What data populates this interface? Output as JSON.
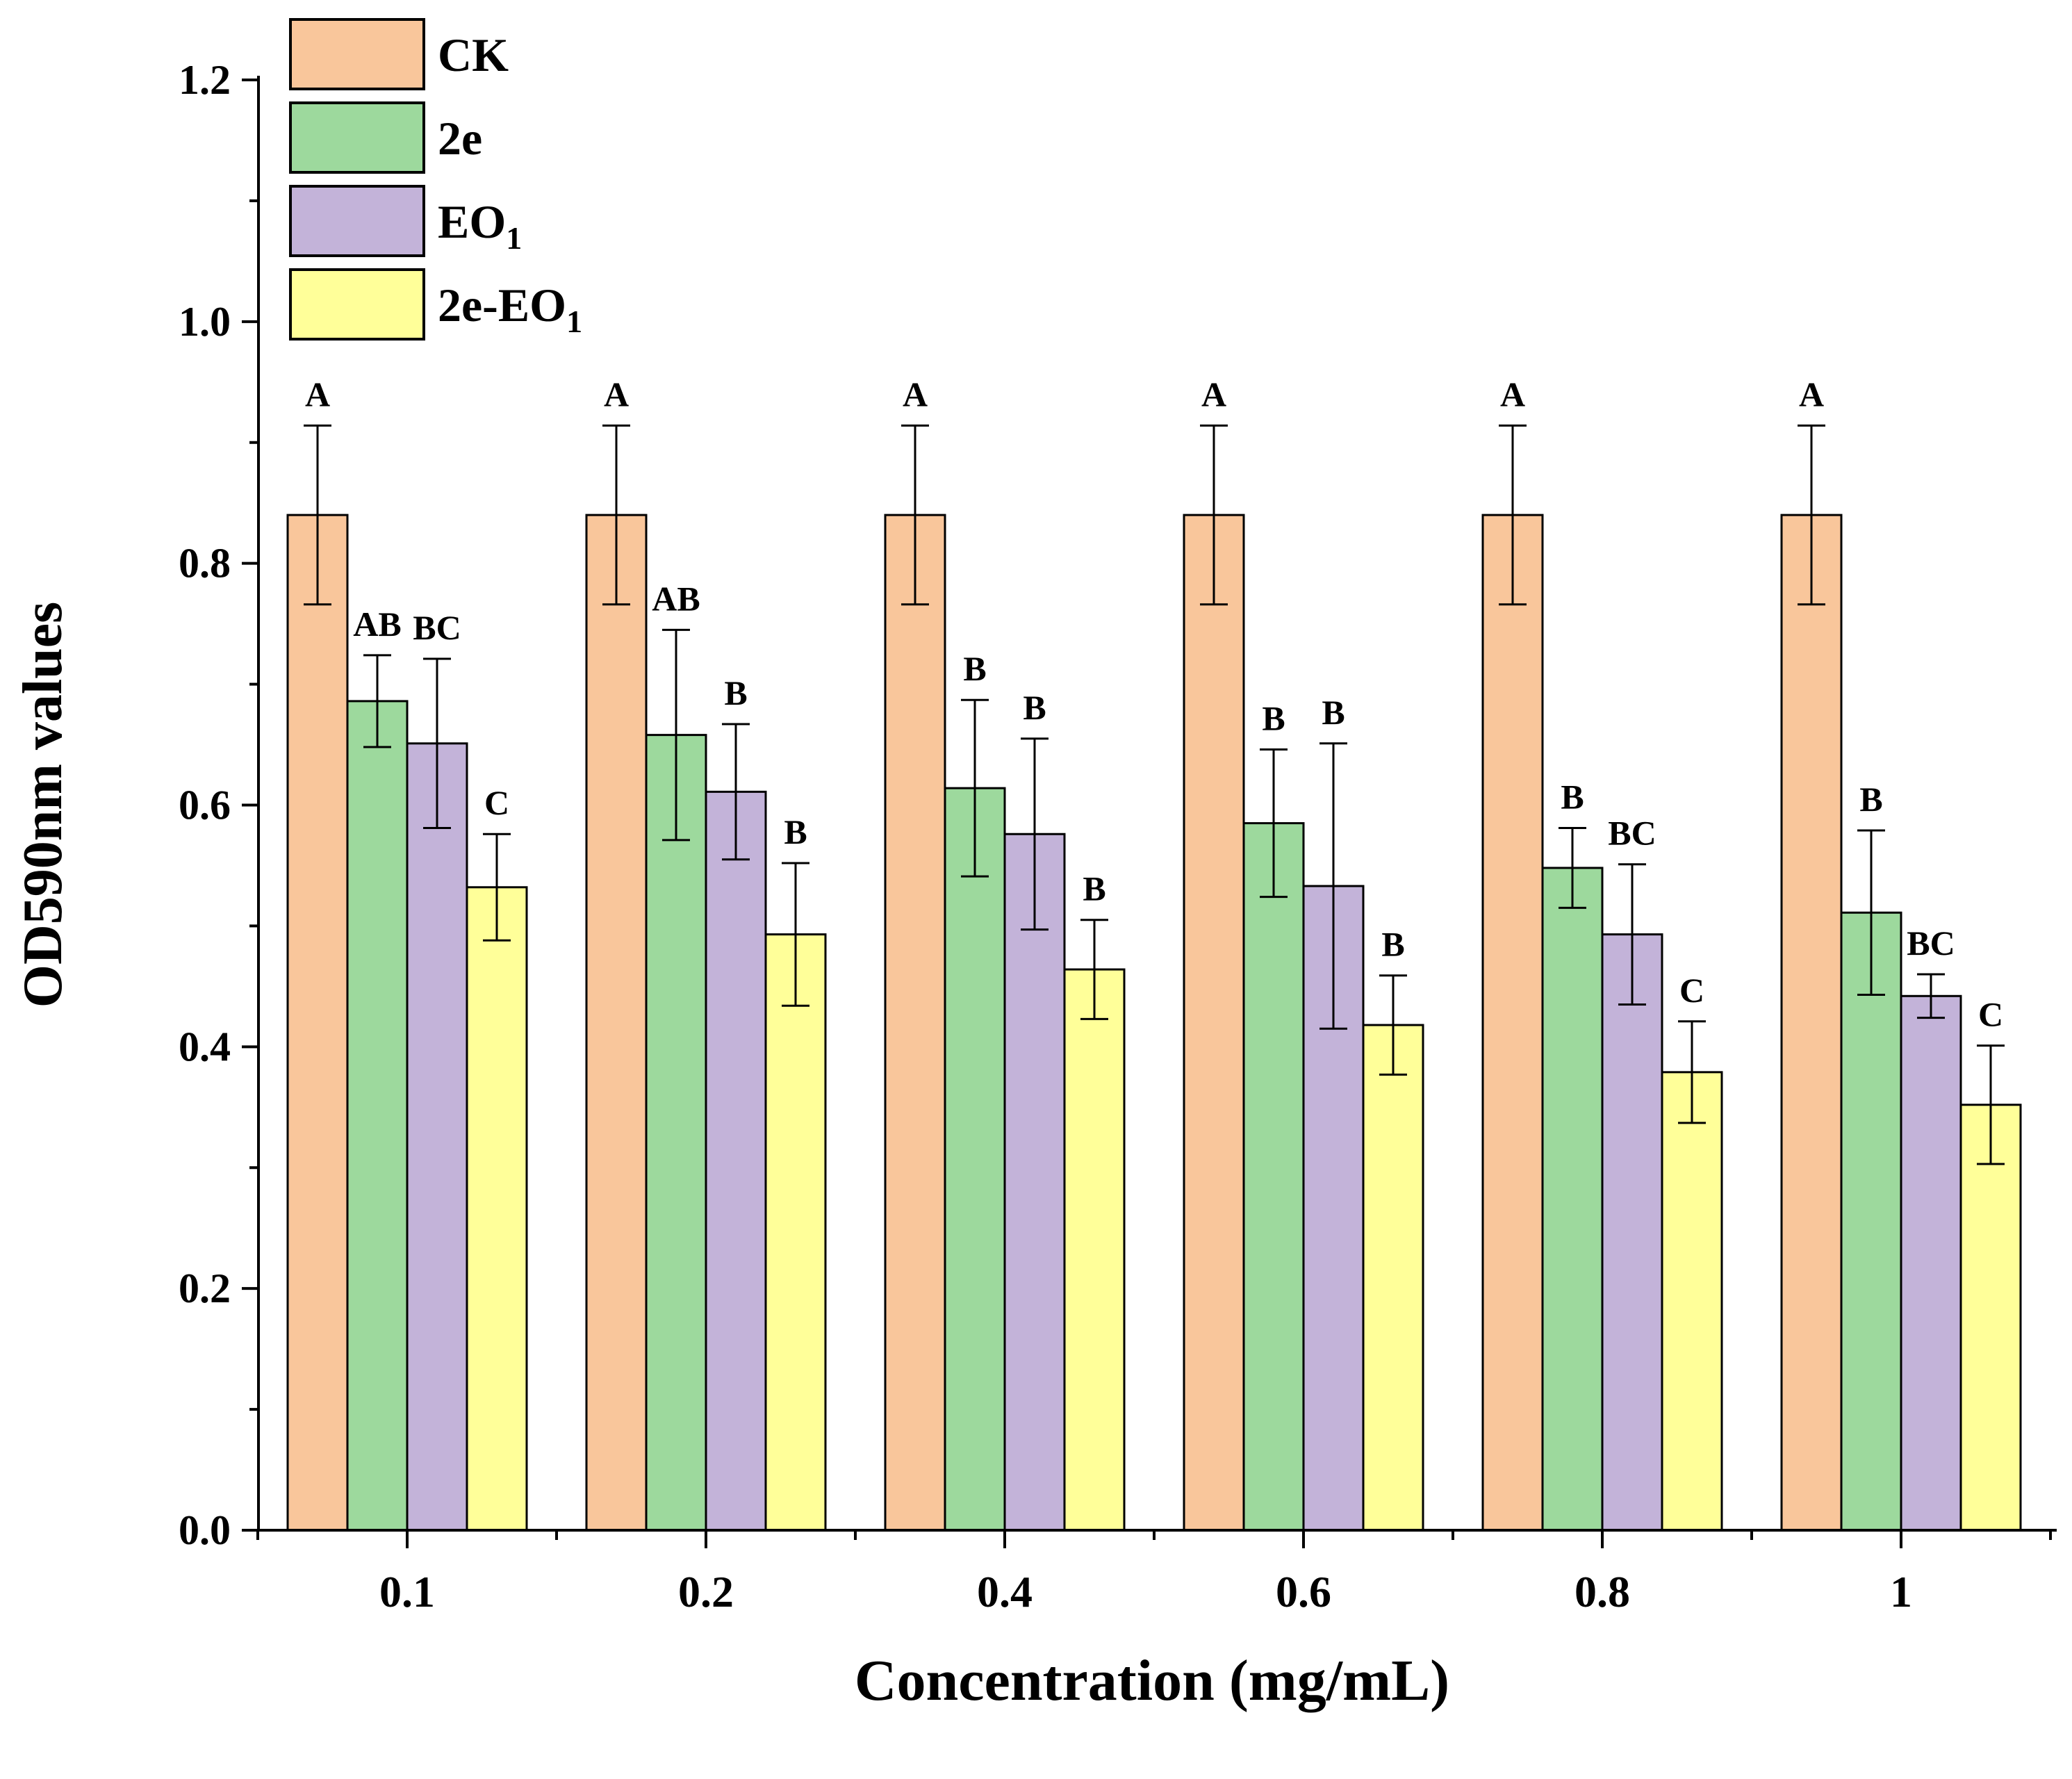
{
  "chart_data": {
    "type": "bar",
    "title": "",
    "xlabel": "Concentration (mg/mL)",
    "ylabel": "OD590nm values",
    "ylim": [
      0,
      1.2
    ],
    "yticks": [
      "0.0",
      "0.2",
      "0.4",
      "0.6",
      "0.8",
      "1.0",
      "1.2"
    ],
    "categories": [
      "0.1",
      "0.2",
      "0.4",
      "0.6",
      "0.8",
      "1"
    ],
    "legend_position": "top-left",
    "series": [
      {
        "name": "CK",
        "legend": {
          "main": "CK",
          "sub": ""
        },
        "color": "#F9C69B",
        "values": [
          0.84,
          0.84,
          0.84,
          0.84,
          0.84,
          0.84
        ],
        "errors": [
          0.074,
          0.074,
          0.074,
          0.074,
          0.074,
          0.074
        ],
        "labels": [
          "A",
          "A",
          "A",
          "A",
          "A",
          "A"
        ]
      },
      {
        "name": "2e",
        "legend": {
          "main": "2e",
          "sub": ""
        },
        "color": "#9DD99D",
        "values": [
          0.686,
          0.658,
          0.614,
          0.585,
          0.548,
          0.511
        ],
        "errors": [
          0.038,
          0.087,
          0.073,
          0.061,
          0.033,
          0.068
        ],
        "labels": [
          "AB",
          "AB",
          "B",
          "B",
          "B",
          "B"
        ]
      },
      {
        "name": "EO1",
        "legend": {
          "main": "EO",
          "sub": "1"
        },
        "color": "#C3B3D9",
        "values": [
          0.651,
          0.611,
          0.576,
          0.533,
          0.493,
          0.442
        ],
        "errors": [
          0.07,
          0.056,
          0.079,
          0.118,
          0.058,
          0.018
        ],
        "labels": [
          "BC",
          "B",
          "B",
          "B",
          "BC",
          "BC"
        ]
      },
      {
        "name": "2e-EO1",
        "legend": {
          "main": "2e-EO",
          "sub": "1"
        },
        "color": "#FFFF99",
        "values": [
          0.532,
          0.493,
          0.464,
          0.418,
          0.379,
          0.352
        ],
        "errors": [
          0.044,
          0.059,
          0.041,
          0.041,
          0.042,
          0.049
        ],
        "labels": [
          "C",
          "B",
          "B",
          "B",
          "C",
          "C"
        ]
      }
    ]
  }
}
